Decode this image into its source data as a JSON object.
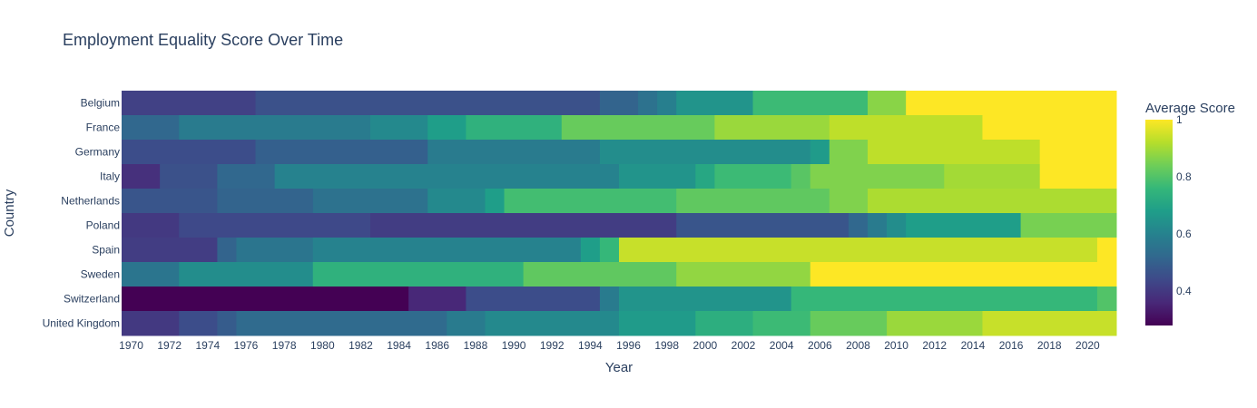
{
  "chart_data": {
    "type": "heatmap",
    "title": "Employment Equality Score Over Time",
    "xlabel": "Year",
    "ylabel": "Country",
    "colorbar_title": "Average Score",
    "colorscale": "Viridis",
    "colorscale_stops": [
      "#440154",
      "#482878",
      "#3e4989",
      "#31688e",
      "#26828e",
      "#1f9e89",
      "#35b779",
      "#6ece58",
      "#b5de2b",
      "#fde725"
    ],
    "zrange": [
      0.28,
      1.0
    ],
    "colorbar_ticks": [
      "0.4",
      "0.6",
      "0.8",
      "1"
    ],
    "colorbar_tick_values": [
      0.4,
      0.6,
      0.8,
      1.0
    ],
    "x_range": [
      1969.5,
      2021.5
    ],
    "x_tick_labels": [
      "1970",
      "1972",
      "1974",
      "1976",
      "1978",
      "1980",
      "1982",
      "1984",
      "1986",
      "1988",
      "1990",
      "1992",
      "1994",
      "1996",
      "1998",
      "2000",
      "2002",
      "2004",
      "2006",
      "2008",
      "2010",
      "2012",
      "2014",
      "2016",
      "2018",
      "2020"
    ],
    "countries": [
      "Belgium",
      "France",
      "Germany",
      "Italy",
      "Netherlands",
      "Poland",
      "Spain",
      "Sweden",
      "Switzerland",
      "United Kingdom"
    ],
    "segments": {
      "Belgium": [
        [
          1970,
          1976,
          0.42
        ],
        [
          1977,
          1994,
          0.46
        ],
        [
          1995,
          1996,
          0.51
        ],
        [
          1997,
          1997,
          0.55
        ],
        [
          1998,
          1998,
          0.59
        ],
        [
          1999,
          2002,
          0.65
        ],
        [
          2003,
          2008,
          0.77
        ],
        [
          2009,
          2010,
          0.87
        ],
        [
          2011,
          2021,
          1.0
        ]
      ],
      "France": [
        [
          1970,
          1972,
          0.52
        ],
        [
          1973,
          1982,
          0.58
        ],
        [
          1983,
          1985,
          0.62
        ],
        [
          1986,
          1987,
          0.68
        ],
        [
          1988,
          1992,
          0.74
        ],
        [
          1993,
          2000,
          0.83
        ],
        [
          2001,
          2006,
          0.89
        ],
        [
          2007,
          2014,
          0.93
        ],
        [
          2015,
          2021,
          1.0
        ]
      ],
      "Germany": [
        [
          1970,
          1976,
          0.45
        ],
        [
          1977,
          1985,
          0.5
        ],
        [
          1986,
          1994,
          0.58
        ],
        [
          1995,
          2005,
          0.63
        ],
        [
          2006,
          2006,
          0.67
        ],
        [
          2007,
          2008,
          0.86
        ],
        [
          2009,
          2017,
          0.93
        ],
        [
          2018,
          2021,
          1.0
        ]
      ],
      "Italy": [
        [
          1970,
          1971,
          0.38
        ],
        [
          1972,
          1974,
          0.46
        ],
        [
          1975,
          1977,
          0.52
        ],
        [
          1978,
          1995,
          0.6
        ],
        [
          1996,
          1999,
          0.65
        ],
        [
          2000,
          2000,
          0.71
        ],
        [
          2001,
          2004,
          0.77
        ],
        [
          2005,
          2005,
          0.81
        ],
        [
          2006,
          2012,
          0.86
        ],
        [
          2013,
          2017,
          0.9
        ],
        [
          2018,
          2021,
          1.0
        ]
      ],
      "Netherlands": [
        [
          1970,
          1974,
          0.47
        ],
        [
          1975,
          1979,
          0.51
        ],
        [
          1980,
          1985,
          0.55
        ],
        [
          1986,
          1988,
          0.62
        ],
        [
          1989,
          1989,
          0.68
        ],
        [
          1990,
          1998,
          0.78
        ],
        [
          1999,
          2006,
          0.82
        ],
        [
          2007,
          2008,
          0.86
        ],
        [
          2009,
          2021,
          0.91
        ]
      ],
      "Poland": [
        [
          1970,
          1972,
          0.4
        ],
        [
          1973,
          1982,
          0.44
        ],
        [
          1983,
          1998,
          0.41
        ],
        [
          1999,
          2007,
          0.47
        ],
        [
          2008,
          2008,
          0.52
        ],
        [
          2009,
          2009,
          0.58
        ],
        [
          2010,
          2010,
          0.63
        ],
        [
          2011,
          2016,
          0.68
        ],
        [
          2017,
          2021,
          0.85
        ]
      ],
      "Spain": [
        [
          1970,
          1974,
          0.41
        ],
        [
          1975,
          1975,
          0.51
        ],
        [
          1976,
          1979,
          0.56
        ],
        [
          1980,
          1993,
          0.6
        ],
        [
          1994,
          1994,
          0.68
        ],
        [
          1995,
          1995,
          0.76
        ],
        [
          1996,
          2020,
          0.94
        ],
        [
          2021,
          2021,
          1.0
        ]
      ],
      "Sweden": [
        [
          1970,
          1972,
          0.56
        ],
        [
          1973,
          1979,
          0.63
        ],
        [
          1980,
          1990,
          0.74
        ],
        [
          1991,
          1998,
          0.82
        ],
        [
          1999,
          2005,
          0.88
        ],
        [
          2006,
          2021,
          1.0
        ]
      ],
      "Switzerland": [
        [
          1970,
          1984,
          0.28
        ],
        [
          1985,
          1987,
          0.36
        ],
        [
          1988,
          1994,
          0.45
        ],
        [
          1995,
          1995,
          0.58
        ],
        [
          1996,
          2004,
          0.65
        ],
        [
          2005,
          2020,
          0.76
        ],
        [
          2021,
          2021,
          0.8
        ]
      ],
      "United Kingdom": [
        [
          1970,
          1972,
          0.4
        ],
        [
          1973,
          1974,
          0.45
        ],
        [
          1975,
          1975,
          0.49
        ],
        [
          1976,
          1986,
          0.53
        ],
        [
          1987,
          1988,
          0.58
        ],
        [
          1989,
          1995,
          0.62
        ],
        [
          1996,
          1999,
          0.67
        ],
        [
          2000,
          2002,
          0.73
        ],
        [
          2003,
          2005,
          0.77
        ],
        [
          2006,
          2009,
          0.83
        ],
        [
          2010,
          2014,
          0.89
        ],
        [
          2015,
          2021,
          0.94
        ]
      ]
    }
  }
}
